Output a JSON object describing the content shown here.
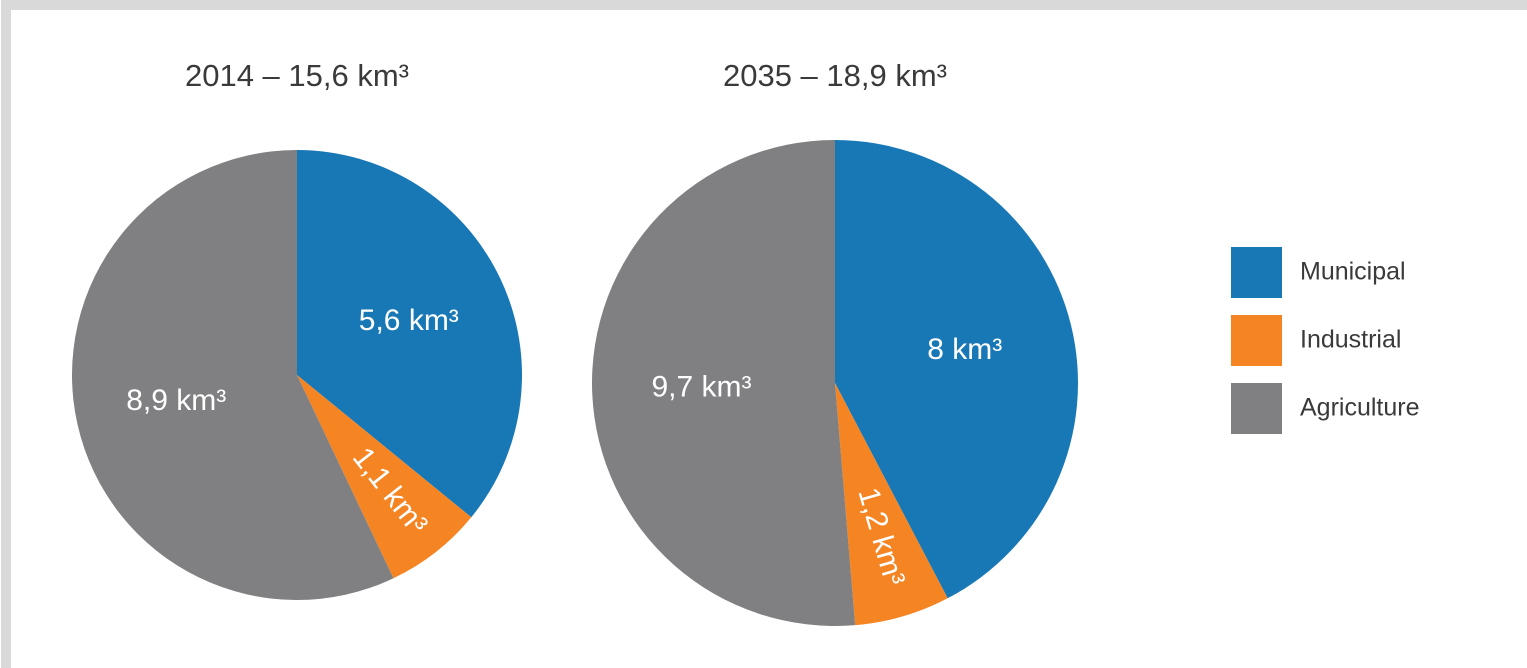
{
  "chart_data": [
    {
      "type": "pie",
      "title": "2014 – 15,6 km³",
      "categories": [
        "Municipal",
        "Industrial",
        "Agriculture"
      ],
      "values": [
        5.6,
        1.1,
        8.9
      ],
      "value_labels": [
        "5,6 km³",
        "1,1 km³",
        "8,9 km³"
      ],
      "colors": [
        "#1878b6",
        "#f58423",
        "#808083"
      ]
    },
    {
      "type": "pie",
      "title": "2035 – 18,9 km³",
      "categories": [
        "Municipal",
        "Industrial",
        "Agriculture"
      ],
      "values": [
        8,
        1.2,
        9.7
      ],
      "value_labels": [
        "8 km³",
        "1,2 km³",
        "9,7 km³"
      ],
      "colors": [
        "#1878b6",
        "#f58423",
        "#808083"
      ]
    }
  ]
}
